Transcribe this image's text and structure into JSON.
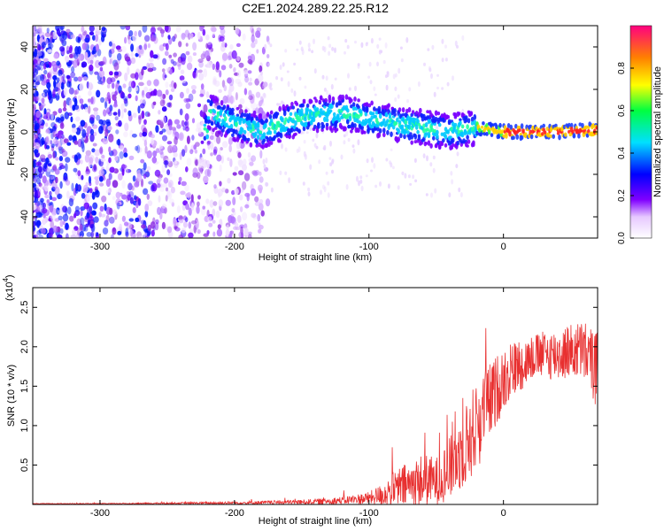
{
  "title": "C2E1.2024.289.22.25.R12",
  "chart_data": [
    {
      "type": "heatmap",
      "xlabel": "Height of straight line (km)",
      "ylabel": "Frequency (Hz)",
      "xlim": [
        -350,
        70
      ],
      "ylim": [
        -50,
        50
      ],
      "x_ticks": [
        -300,
        -200,
        -100,
        0
      ],
      "y_ticks": [
        -40,
        -20,
        0,
        20,
        40
      ],
      "colorbar": {
        "label": "Normalized spectral amplitude",
        "range": [
          0,
          1
        ],
        "ticks": [
          0.0,
          0.2,
          0.4,
          0.6,
          0.8
        ],
        "tick_labels": [
          "0.0",
          "0.2",
          "0.4",
          "0.6",
          "0.8"
        ]
      },
      "signal_track": [
        {
          "x": -220,
          "y": 10
        },
        {
          "x": -200,
          "y": 4
        },
        {
          "x": -180,
          "y": 0
        },
        {
          "x": -160,
          "y": 5
        },
        {
          "x": -140,
          "y": 8
        },
        {
          "x": -120,
          "y": 9
        },
        {
          "x": -100,
          "y": 6
        },
        {
          "x": -80,
          "y": 4
        },
        {
          "x": -60,
          "y": 2
        },
        {
          "x": -40,
          "y": 0
        },
        {
          "x": -20,
          "y": 2
        },
        {
          "x": 0,
          "y": 0
        },
        {
          "x": 20,
          "y": 0
        },
        {
          "x": 40,
          "y": 0
        },
        {
          "x": 70,
          "y": 1
        }
      ]
    },
    {
      "type": "line",
      "xlabel": "Height of straight line (km)",
      "ylabel": "SNR (10 * v/v)",
      "y_multiplier": "(x10",
      "y_multiplier_exp": "4",
      "xlim": [
        -350,
        70
      ],
      "ylim": [
        0,
        2.75
      ],
      "x_ticks": [
        -300,
        -200,
        -100,
        0
      ],
      "y_ticks": [
        0.5,
        1.0,
        1.5,
        2.0,
        2.5
      ],
      "y_tick_labels": [
        "0.5",
        "1.0",
        "1.5",
        "2.0",
        "2.5"
      ],
      "line_color": "#e83030",
      "envelope": {
        "x": [
          -350,
          -300,
          -250,
          -200,
          -150,
          -120,
          -100,
          -90,
          -80,
          -70,
          -60,
          -50,
          -40,
          -30,
          -20,
          -10,
          0,
          10,
          20,
          30,
          40,
          50,
          60,
          70
        ],
        "mean": [
          0.01,
          0.01,
          0.015,
          0.02,
          0.03,
          0.05,
          0.08,
          0.12,
          0.2,
          0.25,
          0.3,
          0.3,
          0.45,
          0.7,
          1.0,
          1.3,
          1.6,
          1.75,
          1.85,
          1.9,
          1.9,
          1.95,
          1.95,
          1.7
        ],
        "amp": [
          0.005,
          0.005,
          0.01,
          0.02,
          0.03,
          0.05,
          0.08,
          0.15,
          0.25,
          0.3,
          0.35,
          0.3,
          0.4,
          0.5,
          0.6,
          0.5,
          0.4,
          0.35,
          0.3,
          0.3,
          0.35,
          0.35,
          0.4,
          0.5
        ]
      }
    }
  ]
}
